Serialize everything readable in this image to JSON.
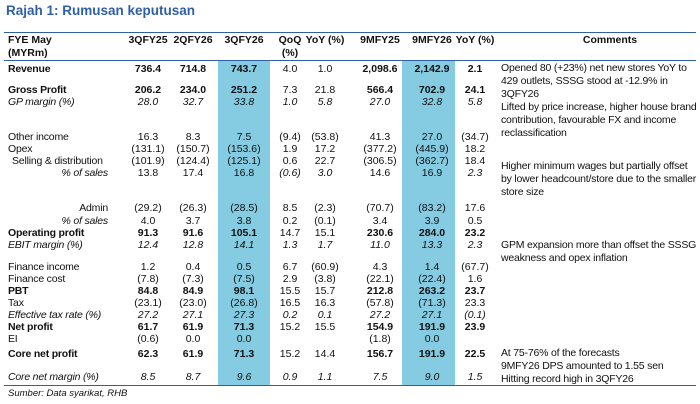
{
  "title": "Rajah 1: Rumusan keputusan",
  "header": {
    "label": "FYE May (MYRm)",
    "columns": [
      "3QFY25",
      "2QFY26",
      "3QFY26",
      "QoQ (%)",
      "YoY (%)",
      "9MFY25",
      "9MFY26",
      "YoY (%)"
    ],
    "comments": "Comments"
  },
  "highlight_color": "#85cbe1",
  "rows": [
    {
      "label": "Revenue",
      "style": "bold",
      "values": [
        "736.4",
        "714.8",
        "743.7",
        "4.0",
        "1.0",
        "2,098.6",
        "2,142.9",
        "2.1"
      ]
    },
    {
      "label": "Gross Profit",
      "style": "bold",
      "values": [
        "206.2",
        "234.0",
        "251.2",
        "7.3",
        "21.8",
        "566.4",
        "702.9",
        "24.1"
      ]
    },
    {
      "label": "GP margin (%)",
      "style": "italic",
      "values": [
        "28.0",
        "32.7",
        "33.8",
        "1.0",
        "5.8",
        "27.0",
        "32.8",
        "5.8"
      ]
    },
    {
      "label": "Other income",
      "style": "normal",
      "values": [
        "16.3",
        "8.3",
        "7.5",
        "(9.4)",
        "(53.8)",
        "41.3",
        "27.0",
        "(34.7)"
      ]
    },
    {
      "label": "Opex",
      "style": "normal",
      "values": [
        "(131.1)",
        "(150.7)",
        "(153.6)",
        "1.9",
        "17.2",
        "(377.2)",
        "(445.9)",
        "18.2"
      ]
    },
    {
      "label": "Selling & distribution",
      "style": "indent",
      "values": [
        "(101.9)",
        "(124.4)",
        "(125.1)",
        "0.6",
        "22.7",
        "(306.5)",
        "(362.7)",
        "18.4"
      ]
    },
    {
      "label": "% of sales",
      "style": "right-italic",
      "values": [
        "13.8",
        "17.4",
        "16.8",
        "(0.6)",
        "3.0",
        "14.6",
        "16.9",
        "2.3"
      ]
    },
    {
      "label": "Admin",
      "style": "right",
      "values": [
        "(29.2)",
        "(26.3)",
        "(28.5)",
        "8.5",
        "(2.3)",
        "(70.7)",
        "(83.2)",
        "17.6"
      ]
    },
    {
      "label": "% of sales",
      "style": "right-italic",
      "values": [
        "4.0",
        "3.7",
        "3.8",
        "0.2",
        "(0.1)",
        "3.4",
        "3.9",
        "0.5"
      ]
    },
    {
      "label": "Operating profit",
      "style": "bold",
      "values": [
        "91.3",
        "91.6",
        "105.1",
        "14.7",
        "15.1",
        "230.6",
        "284.0",
        "23.2"
      ]
    },
    {
      "label": "EBIT margin (%)",
      "style": "italic",
      "values": [
        "12.4",
        "12.8",
        "14.1",
        "1.3",
        "1.7",
        "11.0",
        "13.3",
        "2.3"
      ]
    },
    {
      "label": "Finance income",
      "style": "normal",
      "values": [
        "1.2",
        "0.4",
        "0.5",
        "6.7",
        "(60.9)",
        "4.3",
        "1.4",
        "(67.7)"
      ]
    },
    {
      "label": "Finance cost",
      "style": "normal",
      "values": [
        "(7.8)",
        "(7.3)",
        "(7.5)",
        "2.9",
        "(3.8)",
        "(22.1)",
        "(22.4)",
        "1.6"
      ]
    },
    {
      "label": "PBT",
      "style": "bold",
      "values": [
        "84.8",
        "84.9",
        "98.1",
        "15.5",
        "15.7",
        "212.8",
        "263.2",
        "23.7"
      ]
    },
    {
      "label": "Tax",
      "style": "normal",
      "values": [
        "(23.1)",
        "(23.0)",
        "(26.8)",
        "16.5",
        "16.3",
        "(57.8)",
        "(71.3)",
        "23.3"
      ]
    },
    {
      "label": "Effective tax rate (%)",
      "style": "italic",
      "values": [
        "27.2",
        "27.1",
        "27.3",
        "0.2",
        "0.1",
        "27.2",
        "27.1",
        "(0.1)"
      ]
    },
    {
      "label": "Net profit",
      "style": "bold",
      "values": [
        "61.7",
        "61.9",
        "71.3",
        "15.2",
        "15.5",
        "154.9",
        "191.9",
        "23.9"
      ]
    },
    {
      "label": "EI",
      "style": "normal",
      "values": [
        "(0.6)",
        "0.0",
        "0.0",
        "",
        "",
        "(1.8)",
        "0.0",
        ""
      ]
    },
    {
      "label": "Core net profit",
      "style": "bold",
      "values": [
        "62.3",
        "61.9",
        "71.3",
        "15.2",
        "14.4",
        "156.7",
        "191.9",
        "22.5"
      ]
    },
    {
      "label": "Core net margin (%)",
      "style": "italic",
      "values": [
        "8.5",
        "8.7",
        "9.6",
        "0.9",
        "1.1",
        "7.5",
        "9.0",
        "1.5"
      ]
    }
  ],
  "comments": [
    "Opened 80 (+23%) net new stores YoY to 429 outlets, SSSG stood at -12.9% in 3QFY26",
    "Lifted by price increase, higher house brand contribution, favourable FX and income reclassification",
    "Higher minimum wages but partially offset by lower headcount/store due to the smaller store size",
    "GPM expansion more than offset the SSSG weakness and opex inflation",
    "At 75-76% of the forecasts",
    "9MFY26 DPS amounted to 1.55 sen",
    "Hitting record high in 3QFY26"
  ],
  "source": "Sumber:  Data syarikat, RHB"
}
